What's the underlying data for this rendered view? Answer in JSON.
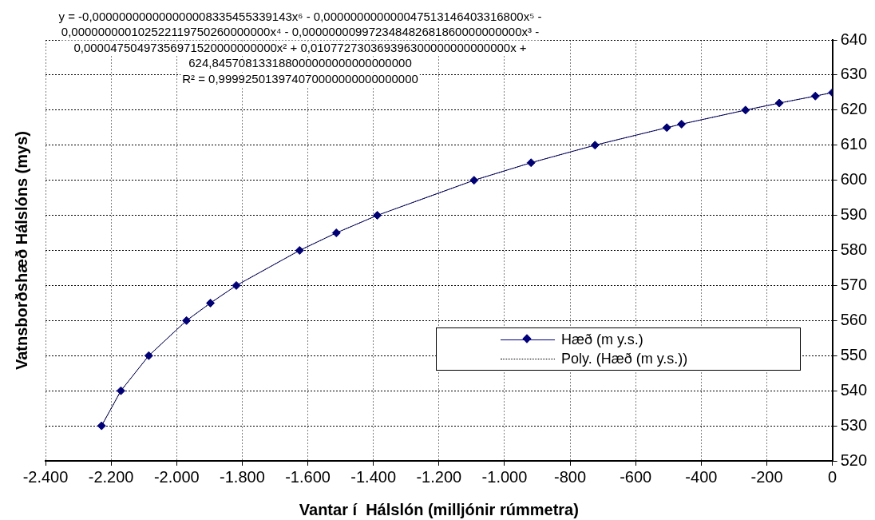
{
  "chart_data": {
    "type": "line",
    "xlabel": "Vantar í  Hálslón (milljónir rúmmetra)",
    "ylabel": "Vatnsborðshæð Hálslóns (mys)",
    "xlim": [
      -2400,
      0
    ],
    "xticks": [
      {
        "value": -2400,
        "label": "-2.400"
      },
      {
        "value": -2200,
        "label": "-2.200"
      },
      {
        "value": -2000,
        "label": "-2.000"
      },
      {
        "value": -1800,
        "label": "-1.800"
      },
      {
        "value": -1600,
        "label": "-1.600"
      },
      {
        "value": -1400,
        "label": "-1.400"
      },
      {
        "value": -1200,
        "label": "-1.200"
      },
      {
        "value": -1000,
        "label": "-1.000"
      },
      {
        "value": -800,
        "label": "-800"
      },
      {
        "value": -600,
        "label": "-600"
      },
      {
        "value": -400,
        "label": "-400"
      },
      {
        "value": -200,
        "label": "-200"
      },
      0
    ],
    "ylim": [
      520,
      640
    ],
    "yticks": [
      520,
      530,
      540,
      550,
      560,
      570,
      580,
      590,
      600,
      610,
      620,
      630,
      640
    ],
    "grid": true,
    "legend": "right",
    "annotations": [
      "y = -0,000000000000000008335455339143x⁶ - 0,000000000000047513146403316800x⁵ -\n0,000000000102522119750260000000x⁴ - 0,000000009972348482681860000000000x³ -\n0,00004750497356971520000000000x² + 0,010772730369396300000000000000x +\n624,845708133188000000000000000000\nR² = 0,999925013974070000000000000000"
    ],
    "series": [
      {
        "name": "Hæð (m y.s.)",
        "color": "#000080",
        "marker": "diamond",
        "line_style": "solid",
        "x": [
          -2229,
          -2170,
          -2085,
          -1970,
          -1897,
          -1818,
          -1625,
          -1513,
          -1388,
          -1093,
          -919,
          -724,
          -505,
          -460,
          -265,
          -162,
          -52,
          0
        ],
        "values": [
          530,
          540,
          550,
          560,
          565,
          570,
          580,
          585,
          590,
          600,
          605,
          610,
          615,
          616,
          620,
          622,
          624,
          625
        ]
      },
      {
        "name": "Poly. (Hæð (m y.s.))",
        "type": "line",
        "color": "#000000",
        "marker": "none",
        "line_style": "dotted",
        "x": [
          -2229,
          -2170,
          -2085,
          -1970,
          -1897,
          -1818,
          -1625,
          -1513,
          -1388,
          -1093,
          -919,
          -724,
          -505,
          -460,
          -265,
          -162,
          -52,
          0
        ],
        "values": [
          530,
          540,
          550,
          560,
          565,
          570,
          580,
          585,
          590,
          600,
          605,
          610,
          615,
          616,
          620,
          622,
          624,
          625
        ]
      }
    ]
  }
}
